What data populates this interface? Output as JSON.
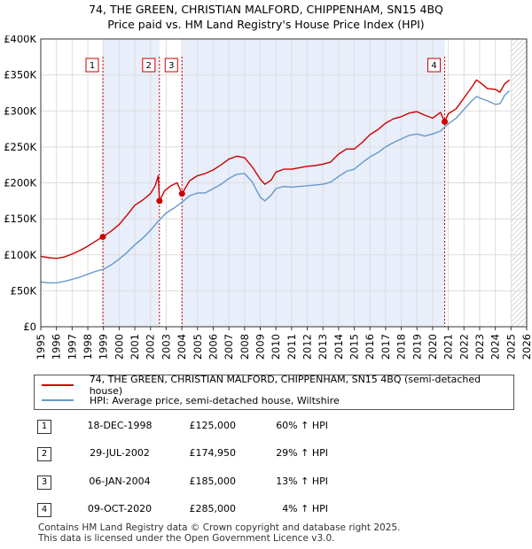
{
  "chart_data": {
    "type": "line",
    "title": "74, THE GREEN, CHRISTIAN MALFORD, CHIPPENHAM, SN15 4BQ",
    "subtitle": "Price paid vs. HM Land Registry's House Price Index (HPI)",
    "xlim": [
      1995,
      2026
    ],
    "ylim": [
      0,
      400000
    ],
    "x_ticks": [
      1995,
      1996,
      1997,
      1998,
      1999,
      2000,
      2001,
      2002,
      2003,
      2004,
      2005,
      2006,
      2007,
      2008,
      2009,
      2010,
      2011,
      2012,
      2013,
      2014,
      2015,
      2016,
      2017,
      2018,
      2019,
      2020,
      2021,
      2022,
      2023,
      2024,
      2025,
      2026
    ],
    "x_tick_labels": [
      "1995",
      "1996",
      "1997",
      "1998",
      "1999",
      "2000",
      "2001",
      "2002",
      "2003",
      "2004",
      "2005",
      "2006",
      "2007",
      "2008",
      "2009",
      "2010",
      "2011",
      "2012",
      "2013",
      "2014",
      "2015",
      "2016",
      "2017",
      "2018",
      "2019",
      "2020",
      "2021",
      "2022",
      "2023",
      "2024",
      "2025",
      "2026"
    ],
    "y_ticks": [
      0,
      50000,
      100000,
      150000,
      200000,
      250000,
      300000,
      350000,
      400000
    ],
    "y_tick_labels": [
      "£0",
      "£50K",
      "£100K",
      "£150K",
      "£200K",
      "£250K",
      "£300K",
      "£350K",
      "£400K"
    ],
    "grid": true,
    "shaded_ranges": [
      [
        1998.96,
        2002.57
      ],
      [
        2004.01,
        2020.77
      ]
    ],
    "hatch_from": 2025.0,
    "series": [
      {
        "name": "74, THE GREEN, CHRISTIAN MALFORD, CHIPPENHAM, SN15 4BQ (semi-detached house)",
        "color": "#cc0000",
        "x": [
          1995.0,
          1995.5,
          1996.0,
          1996.5,
          1997.0,
          1997.5,
          1998.0,
          1998.5,
          1998.96,
          1999.5,
          2000.0,
          2000.5,
          2001.0,
          2001.5,
          2002.0,
          2002.3,
          2002.5,
          2002.57,
          2002.9,
          2003.3,
          2003.7,
          2004.01,
          2004.5,
          2005.0,
          2005.5,
          2006.0,
          2006.5,
          2007.0,
          2007.5,
          2008.0,
          2008.5,
          2009.0,
          2009.3,
          2009.7,
          2010.0,
          2010.5,
          2011.0,
          2011.5,
          2012.0,
          2012.5,
          2013.0,
          2013.5,
          2014.0,
          2014.5,
          2015.0,
          2015.5,
          2016.0,
          2016.5,
          2017.0,
          2017.5,
          2018.0,
          2018.5,
          2019.0,
          2019.5,
          2020.0,
          2020.5,
          2020.77,
          2021.0,
          2021.5,
          2022.0,
          2022.5,
          2022.8,
          2023.0,
          2023.5,
          2024.0,
          2024.3,
          2024.6,
          2024.9
        ],
        "y": [
          98000,
          96000,
          95000,
          97000,
          101000,
          106000,
          112000,
          119000,
          125000,
          133000,
          142000,
          155000,
          169000,
          176000,
          185000,
          196000,
          210000,
          174950,
          189000,
          196000,
          200000,
          185000,
          203000,
          210000,
          213000,
          218000,
          225000,
          233000,
          237000,
          235000,
          222000,
          205000,
          198000,
          204000,
          215000,
          219000,
          219000,
          221000,
          223000,
          224000,
          226000,
          229000,
          240000,
          247000,
          247000,
          256000,
          267000,
          274000,
          283000,
          289000,
          292000,
          297000,
          299000,
          294000,
          290000,
          298000,
          285000,
          296000,
          303000,
          318000,
          333000,
          343000,
          340000,
          331000,
          330000,
          326000,
          338000,
          343000
        ]
      },
      {
        "name": "HPI: Average price, semi-detached house, Wiltshire",
        "color": "#6699cc",
        "x": [
          1995.0,
          1995.5,
          1996.0,
          1996.5,
          1997.0,
          1997.5,
          1998.0,
          1998.5,
          1999.0,
          1999.5,
          2000.0,
          2000.5,
          2001.0,
          2001.5,
          2002.0,
          2002.5,
          2003.0,
          2003.5,
          2004.0,
          2004.5,
          2005.0,
          2005.5,
          2006.0,
          2006.5,
          2007.0,
          2007.5,
          2008.0,
          2008.5,
          2009.0,
          2009.3,
          2009.7,
          2010.0,
          2010.5,
          2011.0,
          2011.5,
          2012.0,
          2012.5,
          2013.0,
          2013.5,
          2014.0,
          2014.5,
          2015.0,
          2015.5,
          2016.0,
          2016.5,
          2017.0,
          2017.5,
          2018.0,
          2018.5,
          2019.0,
          2019.5,
          2020.0,
          2020.5,
          2021.0,
          2021.5,
          2022.0,
          2022.5,
          2022.8,
          2023.0,
          2023.5,
          2024.0,
          2024.3,
          2024.6,
          2024.9
        ],
        "y": [
          62000,
          61000,
          61000,
          63000,
          66000,
          69000,
          73000,
          77000,
          80000,
          86000,
          94000,
          103000,
          114000,
          123000,
          134000,
          147000,
          158000,
          165000,
          173000,
          182000,
          186000,
          186000,
          192000,
          198000,
          206000,
          212000,
          213000,
          201000,
          180000,
          175000,
          183000,
          192000,
          195000,
          194000,
          195000,
          196000,
          197000,
          198000,
          201000,
          209000,
          216000,
          219000,
          228000,
          236000,
          242000,
          250000,
          256000,
          261000,
          266000,
          268000,
          265000,
          268000,
          272000,
          282000,
          290000,
          302000,
          314000,
          320000,
          318000,
          314000,
          309000,
          310000,
          322000,
          328000
        ]
      }
    ],
    "markers": [
      {
        "label": "1",
        "x": 1998.96,
        "y": 125000
      },
      {
        "label": "2",
        "x": 2002.57,
        "y": 174950
      },
      {
        "label": "3",
        "x": 2004.01,
        "y": 185000
      },
      {
        "label": "4",
        "x": 2020.77,
        "y": 285000
      }
    ]
  },
  "legend": {
    "property_label": "74, THE GREEN, CHRISTIAN MALFORD, CHIPPENHAM, SN15 4BQ (semi-detached house)",
    "hpi_label": "HPI: Average price, semi-detached house, Wiltshire",
    "property_color": "#cc0000",
    "hpi_color": "#6699cc"
  },
  "transactions": [
    {
      "num": "1",
      "date": "18-DEC-1998",
      "price": "£125,000",
      "hpi": "60% ↑ HPI"
    },
    {
      "num": "2",
      "date": "29-JUL-2002",
      "price": "£174,950",
      "hpi": "29% ↑ HPI"
    },
    {
      "num": "3",
      "date": "06-JAN-2004",
      "price": "£185,000",
      "hpi": "13% ↑ HPI"
    },
    {
      "num": "4",
      "date": "09-OCT-2020",
      "price": "£285,000",
      "hpi": "4% ↑ HPI"
    }
  ],
  "footer": {
    "line1": "Contains HM Land Registry data © Crown copyright and database right 2025.",
    "line2": "This data is licensed under the Open Government Licence v3.0."
  }
}
